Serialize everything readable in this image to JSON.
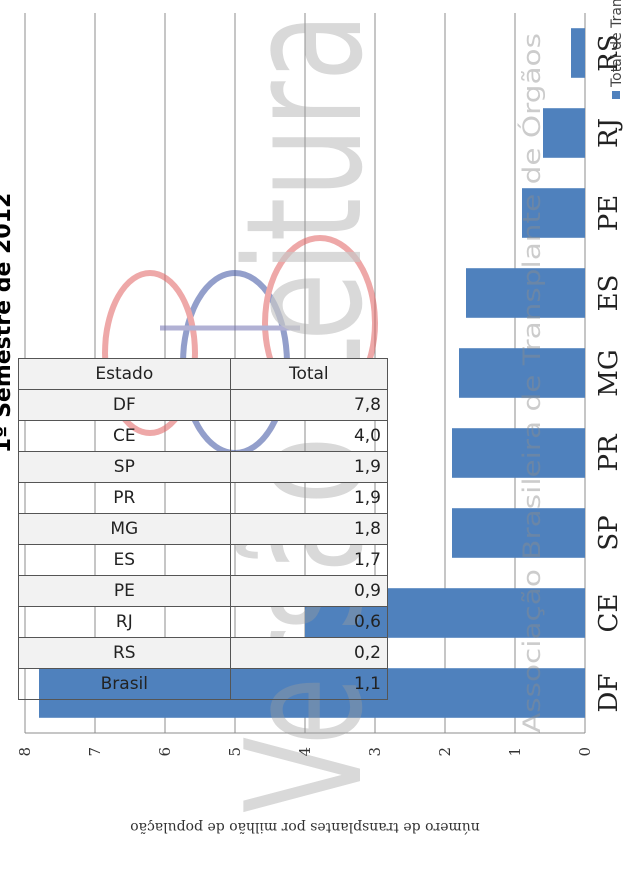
{
  "chart_data": {
    "type": "bar",
    "title": "1º Semestre de 2012",
    "ylabel": "número de transplantes por milhão de população",
    "xlabel": "",
    "categories": [
      "DF",
      "CE",
      "SP",
      "PR",
      "MG",
      "ES",
      "PE",
      "RJ",
      "RS"
    ],
    "series": [
      {
        "name": "Total de Transplantes",
        "values": [
          7.8,
          4.0,
          1.9,
          1.9,
          1.8,
          1.7,
          0.9,
          0.6,
          0.2
        ]
      }
    ],
    "ylim": [
      0,
      8
    ],
    "yticks": [
      "0",
      "1",
      "2",
      "3",
      "4",
      "5",
      "6",
      "7",
      "8"
    ],
    "grid": true,
    "legend": "top-right",
    "colors": {
      "bar": "#4f81bd",
      "grid": "#8c8c8c"
    }
  },
  "table": {
    "headers": [
      "Estado",
      "Total"
    ],
    "rows": [
      [
        "DF",
        "7,8"
      ],
      [
        "CE",
        "4,0"
      ],
      [
        "SP",
        "1,9"
      ],
      [
        "PR",
        "1,9"
      ],
      [
        "MG",
        "1,8"
      ],
      [
        "ES",
        "1,7"
      ],
      [
        "PE",
        "0,9"
      ],
      [
        "RJ",
        "0,6"
      ],
      [
        "RS",
        "0,2"
      ],
      [
        "Brasil",
        "1,1"
      ]
    ]
  },
  "watermark": {
    "text": "Versão Leitura",
    "org": "Associação Brasileira de Transplante de Órgãos"
  }
}
